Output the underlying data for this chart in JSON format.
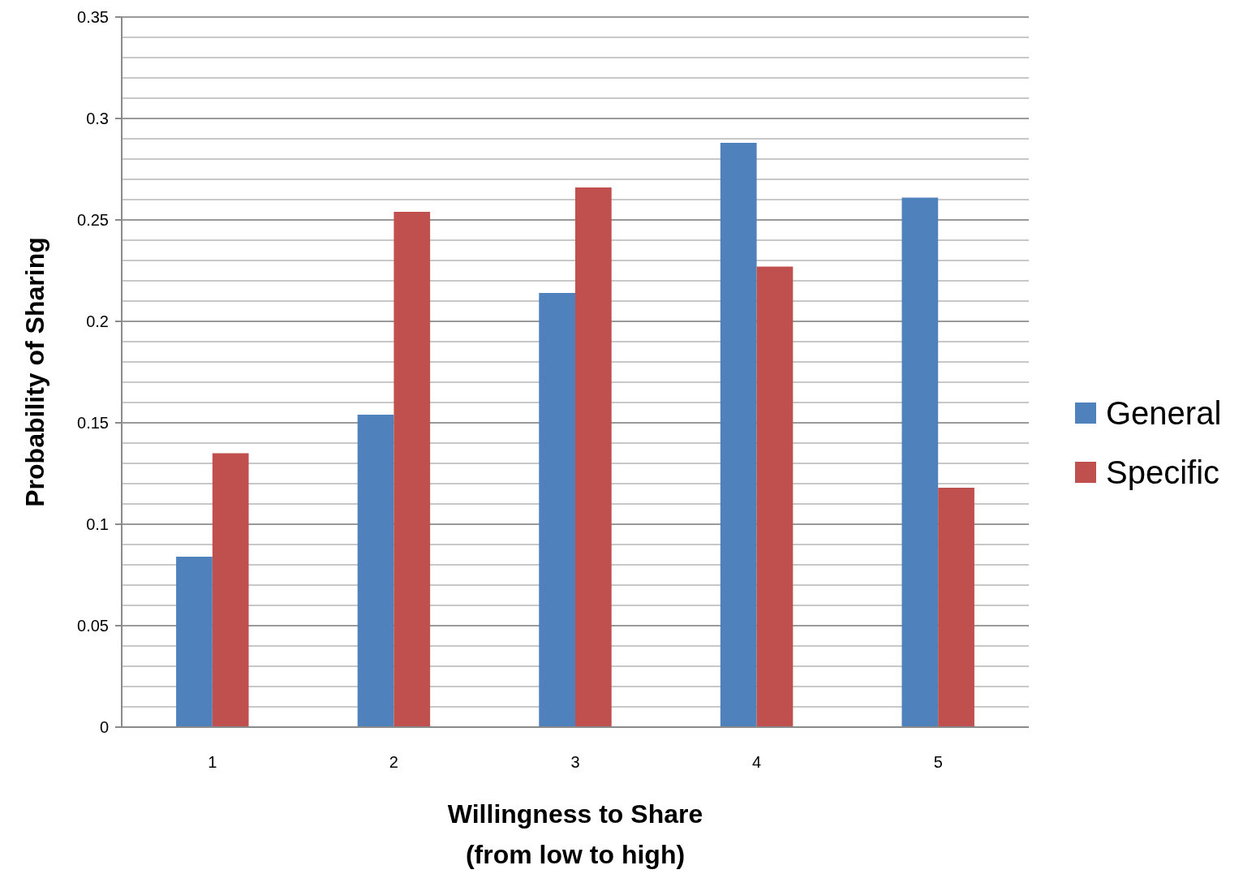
{
  "chart_data": {
    "type": "bar",
    "xlabel": "Willingness to Share\n(from low to high)",
    "ylabel": "Probability of Sharing",
    "categories": [
      "1",
      "2",
      "3",
      "4",
      "5"
    ],
    "series": [
      {
        "name": "General",
        "color": "#4f81bd",
        "values": [
          0.084,
          0.154,
          0.214,
          0.288,
          0.261
        ]
      },
      {
        "name": "Specific",
        "color": "#c0504d",
        "values": [
          0.135,
          0.254,
          0.266,
          0.227,
          0.118
        ]
      }
    ],
    "ylim": [
      0,
      0.35
    ],
    "yticks": [
      0,
      {
        "value": 0.01,
        "label": null
      },
      {
        "value": 0.02,
        "label": null
      },
      {
        "value": 0.03,
        "label": null
      },
      {
        "value": 0.04,
        "label": null
      },
      0.05,
      {
        "value": 0.06,
        "label": null
      },
      {
        "value": 0.07,
        "label": null
      },
      {
        "value": 0.08,
        "label": null
      },
      {
        "value": 0.09,
        "label": null
      },
      0.1,
      {
        "value": 0.11,
        "label": null
      },
      {
        "value": 0.12,
        "label": null
      },
      {
        "value": 0.13,
        "label": null
      },
      {
        "value": 0.14,
        "label": null
      },
      0.15,
      {
        "value": 0.16,
        "label": null
      },
      {
        "value": 0.17,
        "label": null
      },
      {
        "value": 0.18,
        "label": null
      },
      {
        "value": 0.19,
        "label": null
      },
      0.2,
      {
        "value": 0.21,
        "label": null
      },
      {
        "value": 0.22,
        "label": null
      },
      {
        "value": 0.23,
        "label": null
      },
      {
        "value": 0.24,
        "label": null
      },
      0.25,
      {
        "value": 0.26,
        "label": null
      },
      {
        "value": 0.27,
        "label": null
      },
      {
        "value": 0.28,
        "label": null
      },
      {
        "value": 0.29,
        "label": null
      },
      0.3,
      {
        "value": 0.31,
        "label": null
      },
      {
        "value": 0.32,
        "label": null
      },
      {
        "value": 0.33,
        "label": null
      },
      {
        "value": 0.34,
        "label": null
      },
      0.35
    ],
    "grid": "y",
    "legend": "right"
  }
}
